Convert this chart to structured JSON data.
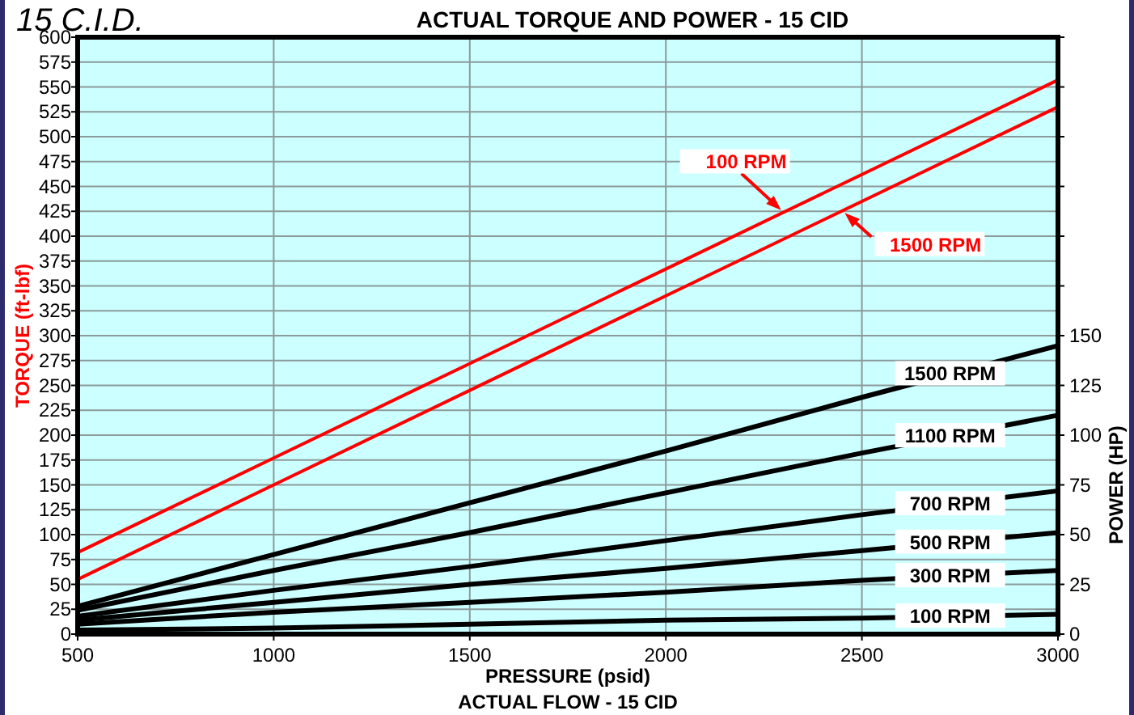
{
  "chart_data": {
    "type": "line",
    "title": "ACTUAL TORQUE AND POWER - 15 CID",
    "xlabel": "PRESSURE (psid)",
    "ylabel": "TORQUE (ft-lbf)",
    "y2label": "POWER (HP)",
    "annotations": [
      "15 C.I.D.",
      "ACTUAL FLOW - 15 CID"
    ],
    "x": [
      500,
      1000,
      1500,
      2000,
      2500,
      3000
    ],
    "series": [
      {
        "name": "100 RPM",
        "color": "#ff0000",
        "values": [
          82,
          177,
          272,
          367,
          462,
          557
        ]
      },
      {
        "name": "1500 RPM",
        "color": "#ff0000",
        "values": [
          55,
          150,
          245,
          340,
          435,
          530
        ]
      },
      {
        "name": "1500 RPM",
        "color": "#000000",
        "axis": "y2",
        "values": [
          14,
          40,
          66,
          92,
          119,
          145
        ]
      },
      {
        "name": "1100 RPM",
        "color": "#000000",
        "axis": "y2",
        "values": [
          12,
          32,
          51,
          71,
          91,
          110
        ]
      },
      {
        "name": "700 RPM",
        "color": "#000000",
        "axis": "y2",
        "values": [
          9,
          22,
          34,
          47,
          60,
          72
        ]
      },
      {
        "name": "500 RPM",
        "color": "#000000",
        "axis": "y2",
        "values": [
          7,
          16,
          25,
          33,
          42,
          51
        ]
      },
      {
        "name": "300 RPM",
        "color": "#000000",
        "axis": "y2",
        "values": [
          5,
          11,
          16,
          21,
          27,
          32
        ]
      },
      {
        "name": "100 RPM",
        "color": "#000000",
        "axis": "y2",
        "values": [
          2,
          3,
          5,
          7,
          8,
          10
        ]
      }
    ],
    "xlim": [
      500,
      3000
    ],
    "xticks": [
      500,
      1000,
      1500,
      2000,
      2500,
      3000
    ],
    "ylim": [
      0,
      600
    ],
    "yticks": [
      0,
      25,
      50,
      75,
      100,
      125,
      150,
      175,
      200,
      225,
      250,
      275,
      300,
      325,
      350,
      375,
      400,
      425,
      450,
      475,
      500,
      525,
      550,
      575,
      600
    ],
    "y2lim": [
      0,
      300
    ],
    "y2ticks": [
      0,
      25,
      50,
      75,
      100,
      125,
      150,
      {
        "value": 175,
        "label": null
      },
      {
        "value": 200,
        "label": null
      },
      {
        "value": 225,
        "label": null
      },
      {
        "value": 250,
        "label": null
      },
      {
        "value": 275,
        "label": null
      },
      {
        "value": 300,
        "label": null
      }
    ],
    "grid": true,
    "marker": "none",
    "line_style": "solid"
  }
}
